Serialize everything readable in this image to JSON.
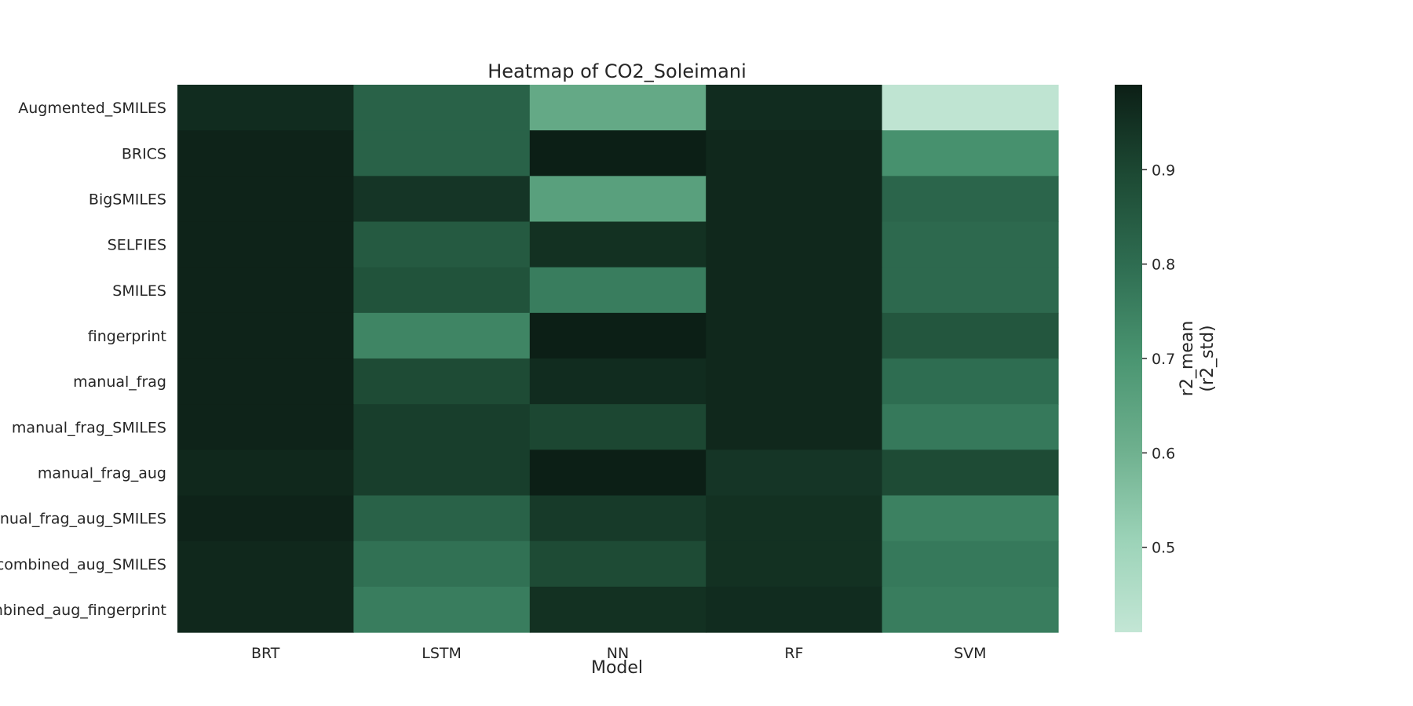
{
  "chart_data": {
    "type": "heatmap",
    "title": "Heatmap of CO2_Soleimani",
    "xlabel": "Model",
    "ylabel": "",
    "x_categories": [
      "BRT",
      "LSTM",
      "NN",
      "RF",
      "SVM"
    ],
    "y_categories": [
      "Augmented_SMILES",
      "BRICS",
      "BigSMILES",
      "SELFIES",
      "SMILES",
      "fingerprint",
      "manual_frag",
      "manual_frag_SMILES",
      "manual_frag_aug",
      "manual_frag_aug_SMILES",
      "combined_aug_SMILES",
      "combined_aug_fingerprint"
    ],
    "values": [
      [
        0.96,
        0.83,
        0.63,
        0.96,
        0.42
      ],
      [
        0.98,
        0.83,
        0.99,
        0.97,
        0.71
      ],
      [
        0.98,
        0.94,
        0.66,
        0.97,
        0.82
      ],
      [
        0.98,
        0.85,
        0.95,
        0.97,
        0.81
      ],
      [
        0.98,
        0.87,
        0.76,
        0.97,
        0.81
      ],
      [
        0.98,
        0.74,
        0.99,
        0.97,
        0.86
      ],
      [
        0.98,
        0.89,
        0.96,
        0.97,
        0.8
      ],
      [
        0.98,
        0.92,
        0.9,
        0.97,
        0.77
      ],
      [
        0.97,
        0.92,
        0.99,
        0.94,
        0.89
      ],
      [
        0.98,
        0.83,
        0.93,
        0.95,
        0.75
      ],
      [
        0.97,
        0.79,
        0.89,
        0.95,
        0.77
      ],
      [
        0.97,
        0.76,
        0.95,
        0.96,
        0.76
      ]
    ],
    "colorbar": {
      "label_line1": "r2_mean",
      "label_line2": "(r2_std)",
      "vmin": 0.41,
      "vmax": 0.99,
      "ticks": [
        0.5,
        0.6,
        0.7,
        0.8,
        0.9
      ],
      "tick_labels": [
        "0.5",
        "0.6",
        "0.7",
        "0.8",
        "0.9"
      ]
    },
    "colormap": [
      "#c3e6d5",
      "#9cd3b8",
      "#6eb08e",
      "#4a9571",
      "#2f6e52",
      "#1d4a34",
      "#0c1f16"
    ]
  }
}
